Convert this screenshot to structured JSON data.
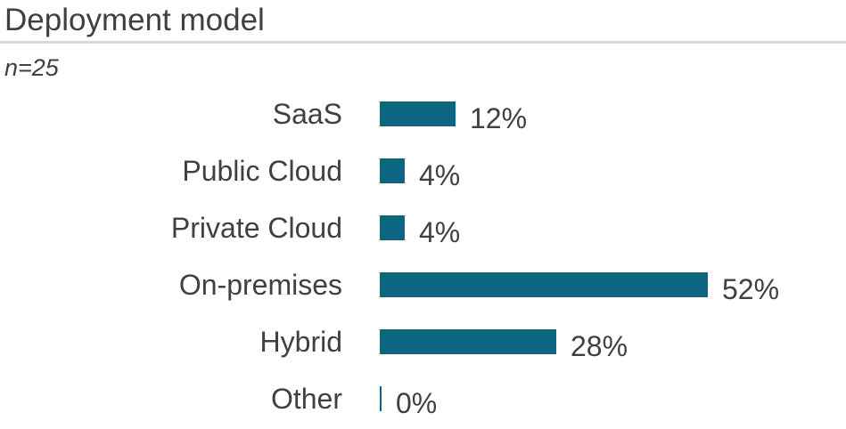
{
  "header": {
    "title": "Deployment model",
    "sample_size": "n=25"
  },
  "colors": {
    "bar": "#0e6582",
    "text": "#404040",
    "separator": "#d9d9d9",
    "background": "#ffffff"
  },
  "chart_data": {
    "type": "bar",
    "orientation": "horizontal",
    "title": "Deployment model",
    "subtitle": "n=25",
    "categories": [
      "SaaS",
      "Public Cloud",
      "Private Cloud",
      "On-premises",
      "Hybrid",
      "Other"
    ],
    "values": [
      12,
      4,
      4,
      52,
      28,
      0
    ],
    "value_labels": [
      "12%",
      "4%",
      "4%",
      "52%",
      "28%",
      "0%"
    ],
    "unit": "%",
    "grid": false,
    "legend": false,
    "value_label_position": "outside-end",
    "category_label_position": "left"
  }
}
